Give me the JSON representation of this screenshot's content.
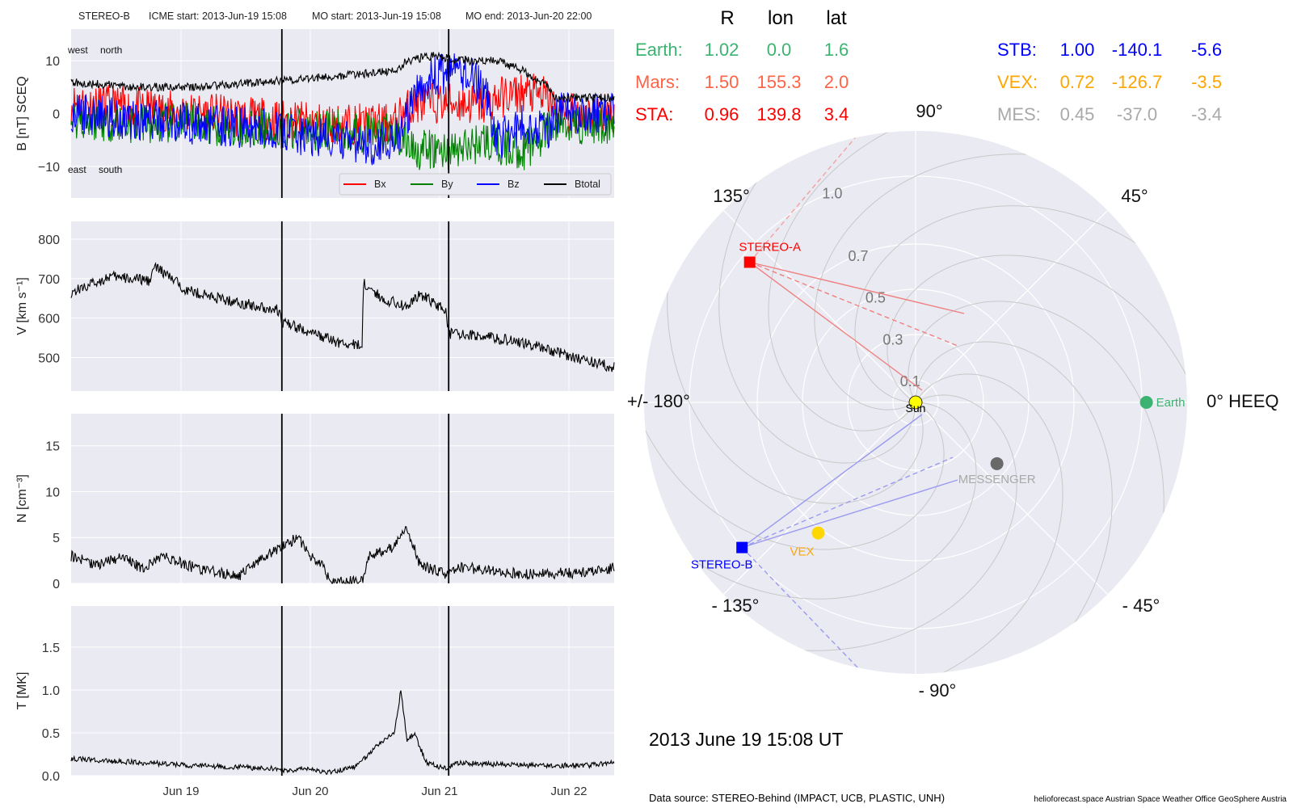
{
  "header": {
    "spacecraft": "STEREO-B",
    "icme_start": "ICME start: 2013-Jun-19 15:08",
    "mo_start": "MO start: 2013-Jun-19 15:08",
    "mo_end": "MO end: 2013-Jun-20 22:00"
  },
  "positions_table": {
    "headers": [
      "R",
      "lon",
      "lat"
    ],
    "rows": [
      {
        "name": "Earth:",
        "R": "1.02",
        "lon": "0.0",
        "lat": "1.6",
        "color": "#3cb371"
      },
      {
        "name": "Mars:",
        "R": "1.50",
        "lon": "155.3",
        "lat": "2.0",
        "color": "#ff6347"
      },
      {
        "name": "STA:",
        "R": "0.96",
        "lon": "139.8",
        "lat": "3.4",
        "color": "#ff0000"
      },
      {
        "name": "STB:",
        "R": "1.00",
        "lon": "-140.1",
        "lat": "-5.6",
        "color": "#0000ff"
      },
      {
        "name": "VEX:",
        "R": "0.72",
        "lon": "-126.7",
        "lat": "-3.5",
        "color": "#ffa500"
      },
      {
        "name": "MES:",
        "R": "0.45",
        "lon": "-37.0",
        "lat": "-3.4",
        "color": "#a9a9a9"
      }
    ]
  },
  "polar": {
    "angle_labels": {
      "deg0": "0° HEEQ",
      "deg45": "45°",
      "deg90": "90°",
      "deg135": "135°",
      "deg180": "+/- 180°",
      "degm135": "- 135°",
      "degm90": "- 90°",
      "degm45": "- 45°"
    },
    "radial_ticks": [
      "0.1",
      "0.3",
      "0.5",
      "0.7",
      "1.0"
    ],
    "radial_tick_values": [
      0.1,
      0.3,
      0.5,
      0.7,
      1.0
    ],
    "rmax": 1.2,
    "bodies": [
      {
        "name": "Sun",
        "r": 0.0,
        "lon": 0,
        "color": "#ffff00",
        "label_color": "#000000"
      },
      {
        "name": "Earth",
        "r": 1.02,
        "lon": 0.0,
        "color": "#3cb371",
        "label_color": "#3cb371"
      },
      {
        "name": "STEREO-A",
        "r": 0.96,
        "lon": 139.8,
        "color": "#ff0000",
        "label_color": "#ff0000"
      },
      {
        "name": "STEREO-B",
        "r": 1.0,
        "lon": -140.1,
        "color": "#0000ff",
        "label_color": "#0000ff"
      },
      {
        "name": "VEX",
        "r": 0.72,
        "lon": -126.7,
        "color": "#ffd700",
        "label_color": "#ffa500"
      },
      {
        "name": "MESSENGER",
        "r": 0.45,
        "lon": -37.0,
        "color": "#696969",
        "label_color": "#a9a9a9"
      }
    ],
    "date": "2013 June 19  15:08 UT"
  },
  "footer": {
    "source": "Data source: STEREO-Behind (IMPACT, UCB, PLASTIC, UNH)",
    "credits": "helioforecast.space   Austrian Space Weather Office   GeoSphere Austria"
  },
  "chart_data": [
    {
      "type": "line",
      "title": "STEREO-B    ICME start: 2013-Jun-19 15:08    MO start: 2013-Jun-19 15:08    MO end: 2013-Jun-20 22:00",
      "ylabel": "B [nT] SCEQ",
      "ylim": [
        -16,
        16
      ],
      "yticks": [
        -10,
        0,
        10
      ],
      "ytick_labels": [
        "−10",
        "0",
        "10"
      ],
      "annotations": [
        "west",
        "north",
        "east",
        "south"
      ],
      "legend": {
        "placement": "lower-right",
        "entries": [
          "Bx",
          "By",
          "Bz",
          "Btotal"
        ]
      },
      "series": [
        {
          "name": "Bx",
          "color": "#ff0000",
          "x": [
            0,
            0.5,
            1,
            1.5,
            2,
            2.5,
            2.55,
            2.7,
            3,
            3.2,
            3.3,
            3.5,
            3.7,
            3.75,
            4.2
          ],
          "y": [
            2,
            1,
            0,
            -1,
            -2,
            -2,
            0,
            2,
            2,
            1.5,
            3,
            4,
            3,
            0,
            0
          ]
        },
        {
          "name": "By",
          "color": "#008000",
          "x": [
            0,
            0.5,
            1,
            1.5,
            2,
            2.5,
            2.55,
            2.7,
            3,
            3.2,
            3.3,
            3.5,
            3.7,
            3.75,
            4.2
          ],
          "y": [
            -1,
            -2,
            -2,
            -3,
            -3,
            -4,
            -5,
            -7,
            -7,
            -5,
            -6,
            -7,
            -3,
            -2,
            -2
          ]
        },
        {
          "name": "Bz",
          "color": "#0000ff",
          "x": [
            0,
            0.5,
            1,
            1.5,
            2,
            2.3,
            2.55,
            2.7,
            2.8,
            3.05,
            3.2,
            3.3,
            3.5,
            3.7,
            3.75,
            4.2
          ],
          "y": [
            0,
            -1,
            -2,
            -3,
            -5,
            -6,
            -4,
            5,
            7,
            8,
            4,
            -5,
            -2,
            -3,
            0,
            0
          ]
        },
        {
          "name": "Btotal",
          "color": "#000000",
          "x": [
            0,
            0.5,
            1,
            1.5,
            2,
            2.5,
            2.6,
            2.8,
            3.0,
            3.3,
            3.5,
            3.7,
            3.75,
            4.2
          ],
          "y": [
            6,
            5,
            5,
            6,
            7,
            8,
            10,
            11,
            10,
            10,
            8,
            5,
            3,
            3
          ]
        }
      ],
      "shock_lines": [
        1.63,
        2.92
      ]
    },
    {
      "type": "line",
      "ylabel": "V [km s⁻¹]",
      "ylim": [
        415,
        845
      ],
      "yticks": [
        500,
        600,
        700,
        800
      ],
      "series": [
        {
          "name": "V",
          "color": "#000000",
          "x": [
            0,
            0.3,
            0.6,
            0.65,
            0.9,
            1.2,
            1.6,
            1.63,
            2.0,
            2.1,
            2.25,
            2.26,
            2.4,
            2.6,
            2.7,
            2.9,
            2.92,
            3.2,
            3.6,
            3.9,
            4.2
          ],
          "y": [
            665,
            705,
            695,
            730,
            670,
            645,
            620,
            590,
            545,
            535,
            530,
            690,
            650,
            630,
            660,
            620,
            560,
            555,
            530,
            500,
            475
          ]
        }
      ]
    },
    {
      "type": "line",
      "ylabel": "N [cm⁻³]",
      "ylim": [
        0,
        18.5
      ],
      "yticks": [
        0,
        5,
        10,
        15
      ],
      "series": [
        {
          "name": "N",
          "color": "#000000",
          "x": [
            0,
            0.2,
            0.4,
            0.55,
            0.7,
            1.0,
            1.3,
            1.5,
            1.63,
            1.75,
            1.85,
            1.95,
            2.0,
            2.25,
            2.3,
            2.5,
            2.6,
            2.7,
            2.9,
            3.0,
            3.5,
            4.0,
            4.2
          ],
          "y": [
            3,
            2,
            3,
            1.5,
            3,
            1.5,
            0.8,
            3,
            4,
            5,
            3,
            2,
            0.2,
            0.2,
            3,
            4,
            6,
            2,
            1,
            1.8,
            1,
            1.2,
            1.7
          ]
        }
      ]
    },
    {
      "type": "line",
      "ylabel": "T [MK]",
      "ylim": [
        0,
        1.98
      ],
      "yticks": [
        0.0,
        0.5,
        1.0,
        1.5
      ],
      "ytick_labels": [
        "0.0",
        "0.5",
        "1.0",
        "1.5"
      ],
      "xlabels": [
        "Jun 19",
        "Jun 20",
        "Jun 21",
        "Jun 22"
      ],
      "series": [
        {
          "name": "T",
          "color": "#000000",
          "x": [
            0,
            0.3,
            0.6,
            0.9,
            1.3,
            1.6,
            1.7,
            1.8,
            1.95,
            2.0,
            2.2,
            2.3,
            2.4,
            2.5,
            2.55,
            2.6,
            2.65,
            2.75,
            2.9,
            3.0,
            3.5,
            4.0,
            4.2
          ],
          "y": [
            0.2,
            0.17,
            0.15,
            0.12,
            0.1,
            0.08,
            0.05,
            0.1,
            0.04,
            0.04,
            0.1,
            0.25,
            0.4,
            0.5,
            1.0,
            0.4,
            0.5,
            0.15,
            0.08,
            0.15,
            0.12,
            0.12,
            0.15
          ]
        }
      ]
    }
  ]
}
